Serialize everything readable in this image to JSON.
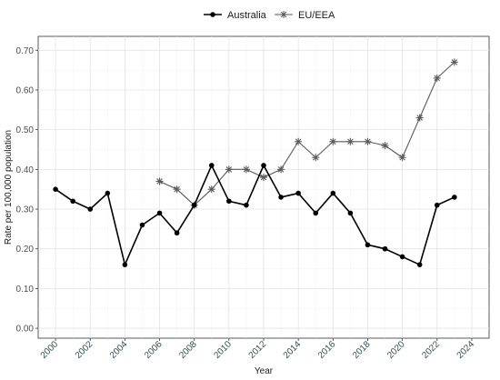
{
  "chart_data": {
    "type": "line",
    "xlabel": "Year",
    "ylabel": "Rate per 100,000 population",
    "xlim": [
      1999,
      2025
    ],
    "ylim": [
      -0.025,
      0.735
    ],
    "x_ticks": [
      2000,
      2002,
      2004,
      2006,
      2008,
      2010,
      2012,
      2014,
      2016,
      2018,
      2020,
      2022,
      2024
    ],
    "y_ticks": [
      0.0,
      0.1,
      0.2,
      0.3,
      0.4,
      0.5,
      0.6,
      0.7
    ],
    "y_tick_labels": [
      "0.00",
      "0.10",
      "0.20",
      "0.30",
      "0.40",
      "0.50",
      "0.60",
      "0.70"
    ],
    "grid": true,
    "legend_position": "top",
    "series": [
      {
        "name": "Australia",
        "marker": "circle",
        "color": "#000000",
        "x": [
          2000,
          2001,
          2002,
          2003,
          2004,
          2005,
          2006,
          2007,
          2008,
          2009,
          2010,
          2011,
          2012,
          2013,
          2014,
          2015,
          2016,
          2017,
          2018,
          2019,
          2020,
          2021,
          2022,
          2023
        ],
        "y": [
          0.35,
          0.32,
          0.3,
          0.34,
          0.16,
          0.26,
          0.29,
          0.24,
          0.31,
          0.41,
          0.32,
          0.31,
          0.41,
          0.33,
          0.34,
          0.29,
          0.34,
          0.29,
          0.21,
          0.2,
          0.18,
          0.16,
          0.31,
          0.33
        ]
      },
      {
        "name": "EU/EEA",
        "marker": "asterisk",
        "color": "#5a5a5a",
        "x": [
          2006,
          2007,
          2008,
          2009,
          2010,
          2011,
          2012,
          2013,
          2014,
          2015,
          2016,
          2017,
          2018,
          2019,
          2020,
          2021,
          2022,
          2023
        ],
        "y": [
          0.37,
          0.35,
          0.31,
          0.35,
          0.4,
          0.4,
          0.38,
          0.4,
          0.47,
          0.43,
          0.47,
          0.47,
          0.47,
          0.46,
          0.43,
          0.53,
          0.63,
          0.67
        ]
      }
    ]
  }
}
